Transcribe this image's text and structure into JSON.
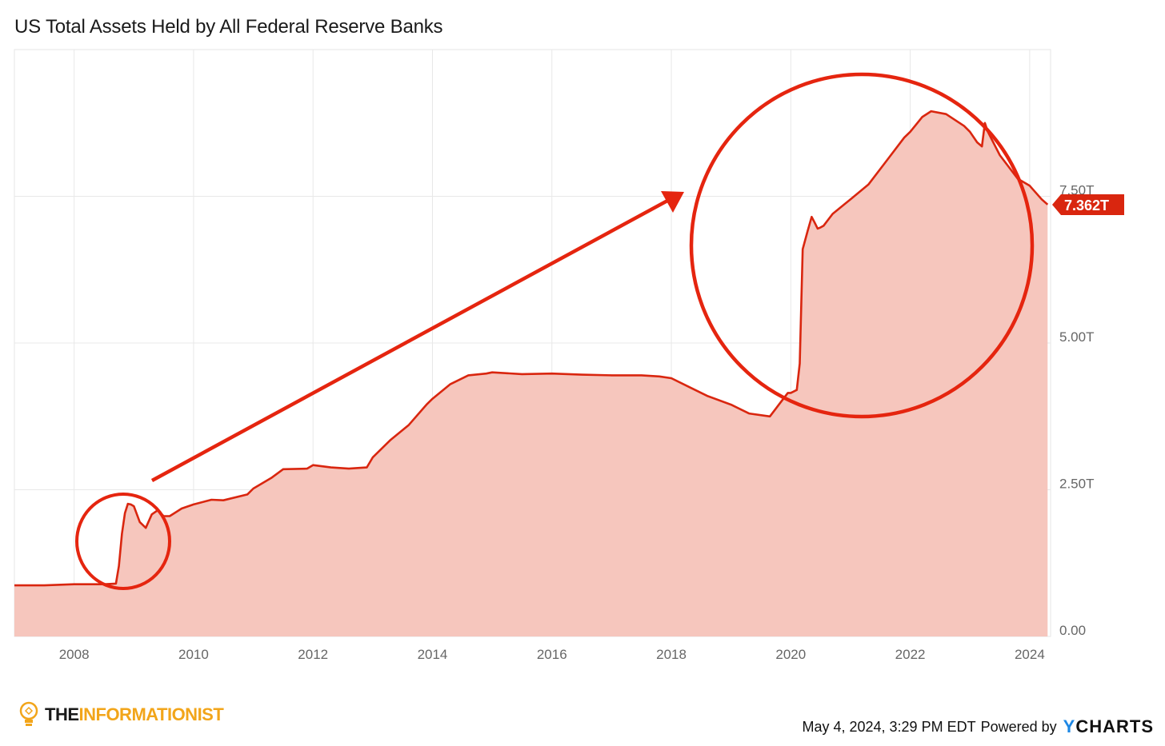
{
  "chart_data": {
    "type": "area",
    "title": "US Total Assets Held by All Federal Reserve Banks",
    "xlabel": "",
    "ylabel": "",
    "x_ticks": [
      "2008",
      "2010",
      "2012",
      "2014",
      "2016",
      "2018",
      "2020",
      "2022",
      "2024"
    ],
    "y_ticks": [
      "0.00",
      "2.50T",
      "5.00T",
      "7.50T"
    ],
    "xlim": [
      2007.0,
      2024.35
    ],
    "ylim": [
      0,
      10
    ],
    "grid": true,
    "legend": "none",
    "current_value_label": "7.362T",
    "series": [
      {
        "name": "",
        "color": "#d9260f",
        "fill": "#f6c6bd",
        "x": [
          2007.0,
          2007.5,
          2008.0,
          2008.5,
          2008.7,
          2008.75,
          2008.8,
          2008.85,
          2008.9,
          2008.95,
          2009.0,
          2009.1,
          2009.2,
          2009.3,
          2009.4,
          2009.5,
          2009.6,
          2009.8,
          2010.0,
          2010.3,
          2010.5,
          2010.9,
          2011.0,
          2011.3,
          2011.5,
          2011.9,
          2012.0,
          2012.3,
          2012.6,
          2012.9,
          2013.0,
          2013.3,
          2013.6,
          2013.9,
          2014.0,
          2014.3,
          2014.6,
          2014.9,
          2015.0,
          2015.5,
          2016.0,
          2016.5,
          2017.0,
          2017.5,
          2017.8,
          2018.0,
          2018.3,
          2018.6,
          2019.0,
          2019.3,
          2019.65,
          2019.8,
          2019.95,
          2020.0,
          2020.1,
          2020.15,
          2020.2,
          2020.28,
          2020.35,
          2020.4,
          2020.45,
          2020.5,
          2020.55,
          2020.7,
          2021.0,
          2021.3,
          2021.6,
          2021.9,
          2022.0,
          2022.2,
          2022.35,
          2022.6,
          2022.9,
          2023.0,
          2023.12,
          2023.2,
          2023.25,
          2023.3,
          2023.5,
          2023.8,
          2024.0,
          2024.2,
          2024.3
        ],
        "values": [
          0.87,
          0.87,
          0.89,
          0.89,
          0.9,
          1.2,
          1.75,
          2.1,
          2.26,
          2.25,
          2.22,
          1.95,
          1.85,
          2.08,
          2.15,
          2.05,
          2.05,
          2.18,
          2.25,
          2.33,
          2.32,
          2.42,
          2.52,
          2.7,
          2.85,
          2.86,
          2.92,
          2.88,
          2.86,
          2.88,
          3.05,
          3.35,
          3.6,
          3.95,
          4.05,
          4.3,
          4.45,
          4.48,
          4.5,
          4.47,
          4.48,
          4.46,
          4.45,
          4.45,
          4.43,
          4.4,
          4.25,
          4.1,
          3.95,
          3.8,
          3.75,
          3.95,
          4.15,
          4.15,
          4.2,
          4.65,
          6.6,
          6.9,
          7.15,
          7.05,
          6.95,
          6.97,
          7.0,
          7.2,
          7.45,
          7.7,
          8.1,
          8.5,
          8.6,
          8.85,
          8.95,
          8.9,
          8.7,
          8.6,
          8.42,
          8.35,
          8.75,
          8.6,
          8.2,
          7.8,
          7.68,
          7.45,
          7.36
        ]
      }
    ]
  },
  "annotations": {
    "accent_color": "#e5250f"
  },
  "footer": {
    "brand_part1": "THE",
    "brand_part2": "INFORMATIONIST",
    "timestamp": "May 4, 2024, 3:29 PM EDT",
    "powered_by": "Powered by",
    "logo_y": "Y",
    "logo_rest": "CHARTS"
  }
}
